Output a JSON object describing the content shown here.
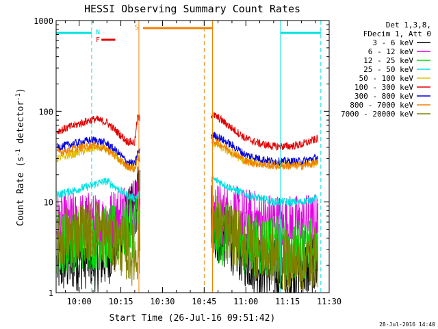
{
  "chart_data": {
    "type": "line",
    "title": "HESSI Observing Summary Count Rates",
    "xlabel": "Start Time (26-Jul-16 09:51:42)",
    "ylabel_main": "Count Rate (s",
    "ylabel_sup1": "-1",
    "ylabel_mid": " detector",
    "ylabel_sup2": "-1",
    "ylabel_end": ")",
    "yscale": "log",
    "ylim": [
      1,
      1000
    ],
    "xlim": [
      "09:51:42",
      "11:30:00"
    ],
    "xticks": [
      "10:00",
      "10:15",
      "10:30",
      "10:45",
      "11:00",
      "11:15",
      "11:30"
    ],
    "yticks": [
      "1",
      "10",
      "100",
      "1000"
    ],
    "legend_header": [
      "Det 1,3,8,",
      "FDecim 1, Att 0"
    ],
    "legend_position": "top-right-outside",
    "timestamp": "28-Jul-2016 14:40",
    "flags": [
      {
        "label": "N",
        "color": "#00e0e0",
        "segments": [
          [
            "09:51:42",
            "10:04:30"
          ],
          [
            "11:12:30",
            "11:27:00"
          ]
        ]
      },
      {
        "label": "F",
        "color": "#e00000",
        "segments": [
          [
            "10:08:00",
            "10:13:00"
          ]
        ]
      },
      {
        "label": "S",
        "color": "#f08000",
        "segments": [
          [
            "10:23:00",
            "10:48:00"
          ]
        ]
      }
    ],
    "vlines": [
      {
        "time": "09:51:42",
        "color": "#00e0e0",
        "style": "solid"
      },
      {
        "time": "10:04:30",
        "color": "#00e0e0",
        "style": "dashed"
      },
      {
        "time": "10:21:30",
        "color": "#f08000",
        "style": "solid"
      },
      {
        "time": "10:45:00",
        "color": "#f08000",
        "style": "dashed"
      },
      {
        "time": "10:48:00",
        "color": "#f08000",
        "style": "solid"
      },
      {
        "time": "11:12:30",
        "color": "#00e0e0",
        "style": "solid"
      },
      {
        "time": "11:27:00",
        "color": "#00e0e0",
        "style": "dashed"
      }
    ],
    "data_gap": [
      "10:22:00",
      "10:47:30"
    ],
    "series": [
      {
        "name": "3 - 6 keV",
        "color": "#000000",
        "x": [
          "09:52",
          "10:04",
          "10:06",
          "10:10",
          "10:14",
          "10:17",
          "10:20",
          "10:21",
          "10:48",
          "10:50",
          "10:55",
          "11:00",
          "11:05",
          "11:10",
          "11:15",
          "11:20",
          "11:26"
        ],
        "y": [
          2.0,
          2.5,
          2.2,
          2.5,
          4.0,
          6.0,
          8.0,
          12.0,
          5.0,
          4.5,
          3.5,
          2.5,
          2.0,
          1.8,
          1.7,
          1.8,
          2.0
        ]
      },
      {
        "name": "6 - 12 keV",
        "color": "#e000e0",
        "x": [
          "09:52",
          "10:04",
          "10:06",
          "10:10",
          "10:14",
          "10:17",
          "10:20",
          "10:21",
          "10:48",
          "10:50",
          "10:55",
          "11:00",
          "11:05",
          "11:10",
          "11:15",
          "11:20",
          "11:26"
        ],
        "y": [
          5.5,
          6.0,
          5.5,
          6.0,
          7.0,
          8.0,
          9.0,
          10.0,
          8.0,
          7.5,
          7.0,
          6.5,
          6.0,
          5.8,
          5.5,
          5.5,
          5.8
        ]
      },
      {
        "name": "12 - 25 keV",
        "color": "#00e000",
        "x": [
          "09:52",
          "10:04",
          "10:06",
          "10:10",
          "10:14",
          "10:17",
          "10:20",
          "10:21",
          "10:48",
          "10:50",
          "10:55",
          "11:00",
          "11:05",
          "11:10",
          "11:15",
          "11:20",
          "11:26"
        ],
        "y": [
          3.5,
          4.0,
          3.8,
          4.0,
          4.5,
          5.0,
          5.5,
          6.0,
          5.0,
          4.5,
          4.0,
          3.5,
          3.3,
          3.2,
          3.0,
          3.0,
          3.2
        ]
      },
      {
        "name": "25 - 50 keV",
        "color": "#00e0e0",
        "x": [
          "09:52",
          "10:04",
          "10:06",
          "10:10",
          "10:14",
          "10:17",
          "10:20",
          "10:21",
          "10:48",
          "10:50",
          "10:55",
          "11:00",
          "11:05",
          "11:10",
          "11:15",
          "11:20",
          "11:26"
        ],
        "y": [
          12.0,
          15.0,
          16.0,
          17.0,
          14.0,
          12.0,
          11.0,
          12.0,
          18.0,
          17.0,
          14.0,
          12.0,
          11.0,
          10.0,
          10.0,
          10.0,
          11.0
        ]
      },
      {
        "name": "50 - 100 keV",
        "color": "#e0c000",
        "x": [
          "09:52",
          "10:04",
          "10:06",
          "10:10",
          "10:14",
          "10:17",
          "10:20",
          "10:21",
          "10:48",
          "10:50",
          "10:55",
          "11:00",
          "11:05",
          "11:10",
          "11:15",
          "11:20",
          "11:26"
        ],
        "y": [
          30.0,
          38.0,
          40.0,
          38.0,
          30.0,
          25.0,
          24.0,
          30.0,
          45.0,
          42.0,
          34.0,
          28.0,
          27.0,
          26.0,
          26.0,
          26.0,
          28.0
        ]
      },
      {
        "name": "100 - 300 keV",
        "color": "#e00000",
        "x": [
          "09:52",
          "10:04",
          "10:06",
          "10:10",
          "10:14",
          "10:17",
          "10:20",
          "10:21",
          "10:48",
          "10:50",
          "10:55",
          "11:00",
          "11:05",
          "11:10",
          "11:15",
          "11:20",
          "11:26"
        ],
        "y": [
          60.0,
          80.0,
          82.0,
          75.0,
          58.0,
          47.0,
          45.0,
          85.0,
          92.0,
          85.0,
          65.0,
          50.0,
          44.0,
          41.0,
          41.0,
          43.0,
          50.0
        ]
      },
      {
        "name": "300 - 800 keV",
        "color": "#0000e0",
        "x": [
          "09:52",
          "10:04",
          "10:06",
          "10:10",
          "10:14",
          "10:17",
          "10:20",
          "10:21",
          "10:48",
          "10:50",
          "10:55",
          "11:00",
          "11:05",
          "11:10",
          "11:15",
          "11:20",
          "11:26"
        ],
        "y": [
          40.0,
          48.0,
          48.0,
          44.0,
          35.0,
          28.0,
          26.0,
          35.0,
          55.0,
          52.0,
          42.0,
          33.0,
          30.0,
          28.0,
          28.0,
          28.0,
          31.0
        ]
      },
      {
        "name": "800 - 7000 keV",
        "color": "#f08000",
        "x": [
          "09:52",
          "10:04",
          "10:06",
          "10:10",
          "10:14",
          "10:17",
          "10:20",
          "10:21",
          "10:48",
          "10:50",
          "10:55",
          "11:00",
          "11:05",
          "11:10",
          "11:15",
          "11:20",
          "11:26"
        ],
        "y": [
          35.0,
          42.0,
          42.0,
          38.0,
          30.0,
          25.0,
          23.0,
          30.0,
          48.0,
          45.0,
          36.0,
          28.0,
          26.0,
          25.0,
          25.0,
          25.0,
          27.0
        ]
      },
      {
        "name": "7000 - 20000 keV",
        "color": "#808000",
        "x": [
          "09:52",
          "10:04",
          "10:06",
          "10:10",
          "10:14",
          "10:17",
          "10:20",
          "10:21",
          "10:48",
          "10:50",
          "10:55",
          "11:00",
          "11:05",
          "11:10",
          "11:15",
          "11:20",
          "11:26"
        ],
        "y": [
          4.0,
          5.0,
          5.0,
          4.5,
          3.5,
          3.0,
          2.5,
          3.0,
          6.0,
          5.5,
          4.5,
          3.5,
          3.0,
          2.5,
          2.2,
          2.2,
          2.5
        ]
      }
    ]
  }
}
